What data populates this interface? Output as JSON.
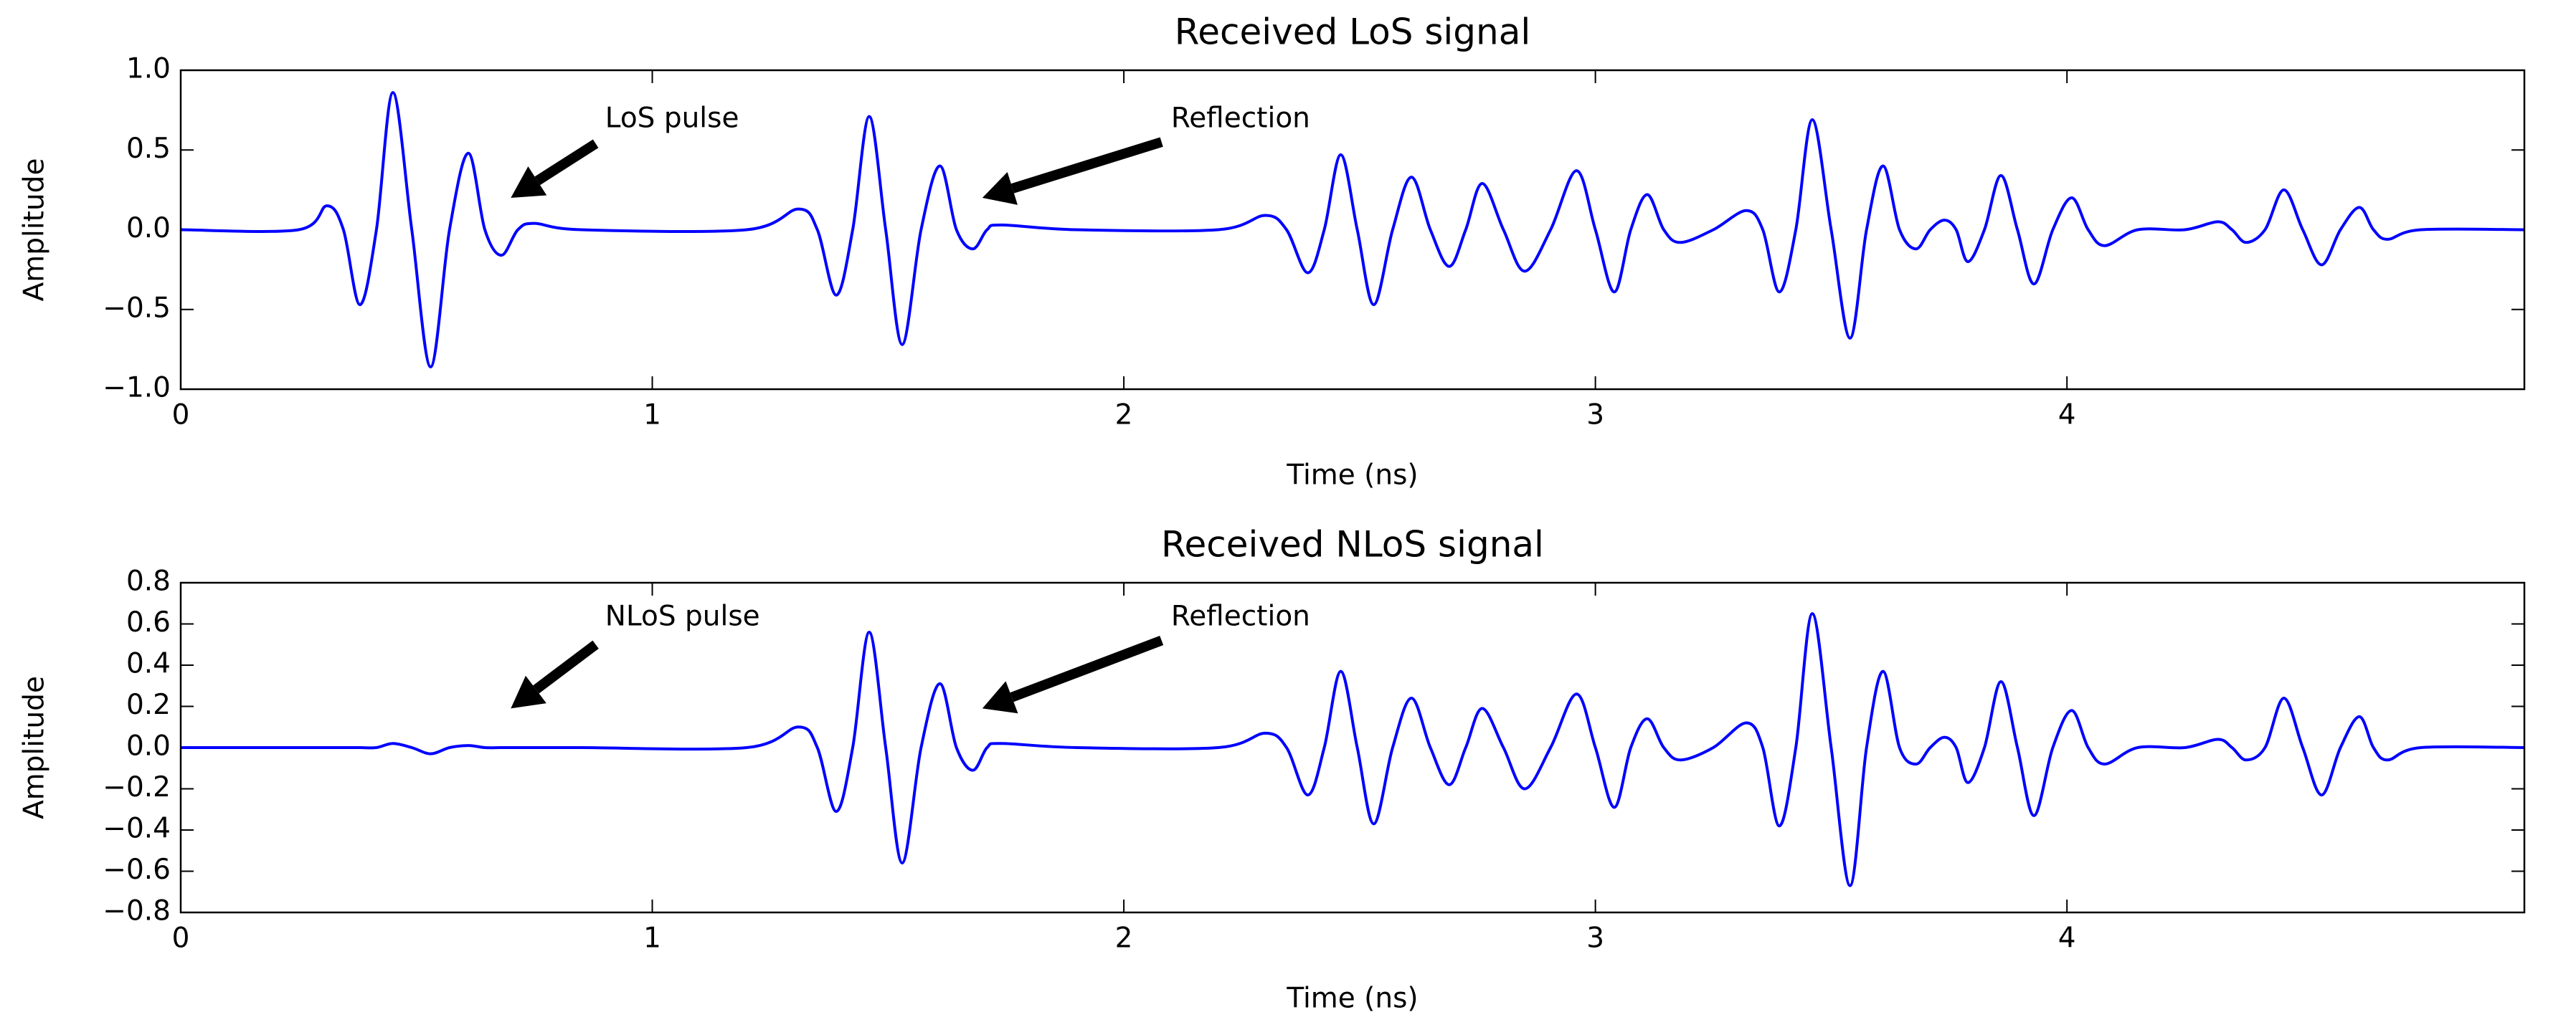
{
  "chart_data": [
    {
      "type": "line",
      "title": "Received LoS signal",
      "xlabel": "Time (ns)",
      "ylabel": "Amplitude",
      "color": "#0000ff",
      "xlim": [
        0,
        4.97
      ],
      "ylim": [
        -1.0,
        1.0
      ],
      "xticks": [
        0,
        1,
        2,
        3,
        4
      ],
      "yticks": [
        {
          "value": -1.0,
          "label": "−1.0"
        },
        {
          "value": -0.5,
          "label": "−0.5"
        },
        {
          "value": 0.0,
          "label": "0.0"
        },
        0.5,
        {
          "value": 1.0,
          "label": "1.0"
        }
      ],
      "annotations": [
        "LoS pulse",
        "Reflection"
      ],
      "x": [
        0,
        0.25,
        0.31,
        0.345,
        0.38,
        0.415,
        0.45,
        0.49,
        0.53,
        0.57,
        0.61,
        0.645,
        0.68,
        0.715,
        0.75,
        0.85,
        1.2,
        1.31,
        1.35,
        1.39,
        1.425,
        1.46,
        1.495,
        1.53,
        1.57,
        1.61,
        1.645,
        1.68,
        1.71,
        1.74,
        1.9,
        2.2,
        2.3,
        2.345,
        2.39,
        2.425,
        2.46,
        2.495,
        2.53,
        2.57,
        2.61,
        2.65,
        2.69,
        2.725,
        2.76,
        2.805,
        2.85,
        2.905,
        2.96,
        3.0,
        3.04,
        3.075,
        3.11,
        3.145,
        3.18,
        3.25,
        3.32,
        3.355,
        3.39,
        3.425,
        3.46,
        3.5,
        3.54,
        3.575,
        3.61,
        3.645,
        3.68,
        3.71,
        3.74,
        3.765,
        3.79,
        3.825,
        3.86,
        3.895,
        3.93,
        3.97,
        4.01,
        4.045,
        4.08,
        4.15,
        4.25,
        4.32,
        4.35,
        4.38,
        4.42,
        4.46,
        4.5,
        4.54,
        4.58,
        4.62,
        4.65,
        4.68,
        4.75,
        4.97
      ],
      "values": [
        0,
        0,
        0.15,
        0,
        -0.47,
        0,
        0.86,
        0,
        -0.86,
        0,
        0.48,
        0,
        -0.16,
        0,
        0.04,
        0,
        0,
        0.13,
        0,
        -0.41,
        0,
        0.71,
        0,
        -0.72,
        0,
        0.4,
        0,
        -0.12,
        0,
        0.03,
        0,
        0,
        0.09,
        0,
        -0.27,
        0,
        0.47,
        0,
        -0.47,
        0,
        0.33,
        0,
        -0.23,
        0,
        0.29,
        0,
        -0.26,
        0,
        0.37,
        0,
        -0.39,
        0,
        0.22,
        0,
        -0.08,
        0,
        0.12,
        0,
        -0.39,
        0,
        0.69,
        0,
        -0.68,
        0,
        0.4,
        0,
        -0.12,
        0,
        0.06,
        0,
        -0.2,
        0,
        0.34,
        0,
        -0.34,
        0,
        0.2,
        0,
        -0.1,
        0,
        0,
        0.05,
        0,
        -0.08,
        0,
        0.25,
        0,
        -0.22,
        0,
        0.14,
        0,
        -0.06,
        0,
        0
      ]
    },
    {
      "type": "line",
      "title": "Received NLoS signal",
      "xlabel": "Time (ns)",
      "ylabel": "Amplitude",
      "color": "#0000ff",
      "xlim": [
        0,
        4.97
      ],
      "ylim": [
        -0.8,
        0.8
      ],
      "xticks": [
        0,
        1,
        2,
        3,
        4
      ],
      "yticks": [
        {
          "value": -0.8,
          "label": "−0.8"
        },
        {
          "value": -0.6,
          "label": "−0.6"
        },
        {
          "value": -0.4,
          "label": "−0.4"
        },
        {
          "value": -0.2,
          "label": "−0.2"
        },
        {
          "value": 0.0,
          "label": "0.0"
        },
        0.2,
        0.4,
        0.6,
        0.8
      ],
      "annotations": [
        "NLoS pulse",
        "Reflection"
      ],
      "x": [
        0,
        0.25,
        0.31,
        0.345,
        0.38,
        0.415,
        0.45,
        0.49,
        0.53,
        0.57,
        0.61,
        0.645,
        0.68,
        0.715,
        0.75,
        0.85,
        1.2,
        1.31,
        1.35,
        1.39,
        1.425,
        1.46,
        1.495,
        1.53,
        1.57,
        1.61,
        1.645,
        1.68,
        1.71,
        1.74,
        1.9,
        2.2,
        2.3,
        2.345,
        2.39,
        2.425,
        2.46,
        2.495,
        2.53,
        2.57,
        2.61,
        2.65,
        2.69,
        2.725,
        2.76,
        2.805,
        2.85,
        2.905,
        2.96,
        3.0,
        3.04,
        3.075,
        3.11,
        3.145,
        3.18,
        3.25,
        3.32,
        3.355,
        3.39,
        3.425,
        3.46,
        3.5,
        3.54,
        3.575,
        3.61,
        3.645,
        3.68,
        3.71,
        3.74,
        3.765,
        3.79,
        3.825,
        3.86,
        3.895,
        3.93,
        3.97,
        4.01,
        4.045,
        4.08,
        4.15,
        4.25,
        4.32,
        4.35,
        4.38,
        4.42,
        4.46,
        4.5,
        4.54,
        4.58,
        4.62,
        4.65,
        4.68,
        4.75,
        4.97
      ],
      "values": [
        0,
        0,
        0,
        0,
        0,
        0,
        0.02,
        0,
        -0.03,
        0,
        0.01,
        0,
        0,
        0,
        0,
        0,
        0,
        0.1,
        0,
        -0.31,
        0,
        0.56,
        0,
        -0.56,
        0,
        0.31,
        0,
        -0.11,
        0,
        0.02,
        0,
        0,
        0.07,
        0,
        -0.23,
        0,
        0.37,
        0,
        -0.37,
        0,
        0.24,
        0,
        -0.18,
        0,
        0.19,
        0,
        -0.2,
        0,
        0.26,
        0,
        -0.29,
        0,
        0.14,
        0,
        -0.06,
        0,
        0.12,
        0,
        -0.38,
        0,
        0.65,
        0,
        -0.67,
        0,
        0.37,
        0,
        -0.08,
        0,
        0.05,
        0,
        -0.17,
        0,
        0.32,
        0,
        -0.33,
        0,
        0.18,
        0,
        -0.08,
        0,
        0,
        0.04,
        0,
        -0.06,
        0,
        0.24,
        0,
        -0.23,
        0,
        0.15,
        0,
        -0.06,
        0,
        0
      ]
    }
  ]
}
